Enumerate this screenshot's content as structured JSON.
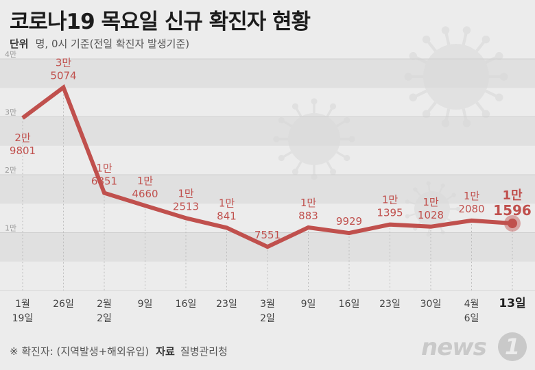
{
  "title": "코로나19 목요일 신규 확진자 현황",
  "unit": {
    "label": "단위",
    "text": "명, 0시 기준(전일 확진자 발생기준)"
  },
  "footer": {
    "note": "※ 확진자: (지역발생+해외유입)",
    "source_label": "자료",
    "source": "질병관리청"
  },
  "logo": {
    "text": "news",
    "mark": "1"
  },
  "colors": {
    "line": "#c0504d",
    "band": "#e0e0e0",
    "background": "#ececec"
  },
  "chart_data": {
    "type": "line",
    "title": "코로나19 목요일 신규 확진자 현황",
    "ylabel": "명",
    "ylim": [
      0,
      40000
    ],
    "yticks": [
      {
        "value": 10000,
        "label": "1만"
      },
      {
        "value": 20000,
        "label": "2만"
      },
      {
        "value": 30000,
        "label": "3만"
      },
      {
        "value": 40000,
        "label": "4만"
      }
    ],
    "points": [
      {
        "x1": "1월",
        "x2": "19일",
        "value": 29801,
        "l1": "2만",
        "l2": "9801",
        "highlight": false
      },
      {
        "x1": "26일",
        "x2": "",
        "value": 35074,
        "l1": "3만",
        "l2": "5074",
        "highlight": false
      },
      {
        "x1": "2월",
        "x2": "2일",
        "value": 16851,
        "l1": "1만",
        "l2": "6851",
        "highlight": false
      },
      {
        "x1": "9일",
        "x2": "",
        "value": 14660,
        "l1": "1만",
        "l2": "4660",
        "highlight": false
      },
      {
        "x1": "16일",
        "x2": "",
        "value": 12513,
        "l1": "1만",
        "l2": "2513",
        "highlight": false
      },
      {
        "x1": "23일",
        "x2": "",
        "value": 10841,
        "l1": "1만",
        "l2": "841",
        "highlight": false
      },
      {
        "x1": "3월",
        "x2": "2일",
        "value": 7551,
        "l1": "",
        "l2": "7551",
        "highlight": false
      },
      {
        "x1": "9일",
        "x2": "",
        "value": 10883,
        "l1": "1만",
        "l2": "883",
        "highlight": false
      },
      {
        "x1": "16일",
        "x2": "",
        "value": 9929,
        "l1": "",
        "l2": "9929",
        "highlight": false
      },
      {
        "x1": "23일",
        "x2": "",
        "value": 11395,
        "l1": "1만",
        "l2": "1395",
        "highlight": false
      },
      {
        "x1": "30일",
        "x2": "",
        "value": 11028,
        "l1": "1만",
        "l2": "1028",
        "highlight": false
      },
      {
        "x1": "4월",
        "x2": "6일",
        "value": 12080,
        "l1": "1만",
        "l2": "2080",
        "highlight": false
      },
      {
        "x1": "13일",
        "x2": "",
        "value": 11596,
        "l1": "1만",
        "l2": "1596",
        "highlight": true
      }
    ]
  }
}
